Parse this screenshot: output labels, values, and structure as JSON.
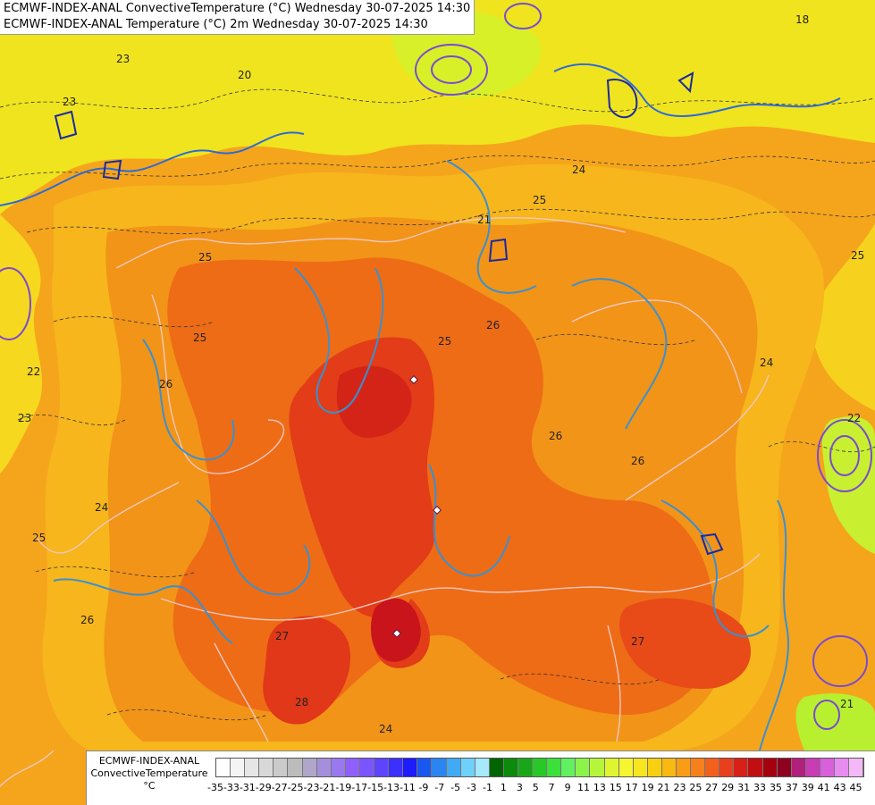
{
  "title": {
    "line1": "ECMWF-INDEX-ANAL ConvectiveTemperature (°C) Wednesday 30-07-2025 14:30",
    "line2": "ECMWF-INDEX-ANAL Temperature (°C) 2m Wednesday 30-07-2025 14:30"
  },
  "legend": {
    "line1": "ECMWF-INDEX-ANAL",
    "line2": "ConvectiveTemperature",
    "unit": "°C",
    "ticks": [
      "-35",
      "-33",
      "-31",
      "-29",
      "-27",
      "-25",
      "-23",
      "-21",
      "-19",
      "-17",
      "-15",
      "-13",
      "-11",
      "-9",
      "-7",
      "-5",
      "-3",
      "-1",
      "1",
      "3",
      "5",
      "7",
      "9",
      "11",
      "13",
      "15",
      "17",
      "19",
      "21",
      "23",
      "25",
      "27",
      "29",
      "31",
      "33",
      "35",
      "37",
      "39",
      "41",
      "43",
      "45"
    ],
    "colors": [
      "#ffffff",
      "#f4f4f4",
      "#e6e6e6",
      "#d8d8d8",
      "#cacaca",
      "#bcbcbc",
      "#b0a6c8",
      "#a58fdc",
      "#9a78f0",
      "#9060ff",
      "#7a55ff",
      "#5f44ff",
      "#3c30ff",
      "#1c1cff",
      "#1858f0",
      "#2b85f0",
      "#40aaf5",
      "#6fd0fa",
      "#a6e8fc",
      "#006400",
      "#0b8a0b",
      "#19a719",
      "#28c828",
      "#3be03b",
      "#60f060",
      "#8cf34b",
      "#b7f53a",
      "#def52f",
      "#f5f530",
      "#f7e520",
      "#f8d010",
      "#f9b812",
      "#f99c16",
      "#f8801a",
      "#f2601c",
      "#e8401c",
      "#d82018",
      "#c00e12",
      "#a4000e",
      "#8c0020",
      "#b0207c",
      "#c83cb4",
      "#d860dc",
      "#e88cf0",
      "#f4b8f8"
    ],
    "colors_note_visible": "swatches only"
  },
  "map_labels": [
    {
      "text": "23"
    },
    {
      "text": "22"
    },
    {
      "text": "20"
    },
    {
      "text": "18"
    },
    {
      "text": "24"
    },
    {
      "text": "25"
    },
    {
      "text": "26"
    },
    {
      "text": "27"
    },
    {
      "text": "28"
    },
    {
      "text": "21"
    }
  ],
  "palette": {
    "ocean_yellow": "#f0e61e",
    "light_orange": "#f6b21c",
    "orange": "#f49018",
    "dark_orange": "#ee6a16",
    "red": "#e2381a",
    "deep_red": "#c2141a",
    "contour_blue": "#2060e0",
    "contour_cyan": "#4aa8d0",
    "contour_purple": "#8050d0",
    "border_pink": "#f0c8c8"
  }
}
